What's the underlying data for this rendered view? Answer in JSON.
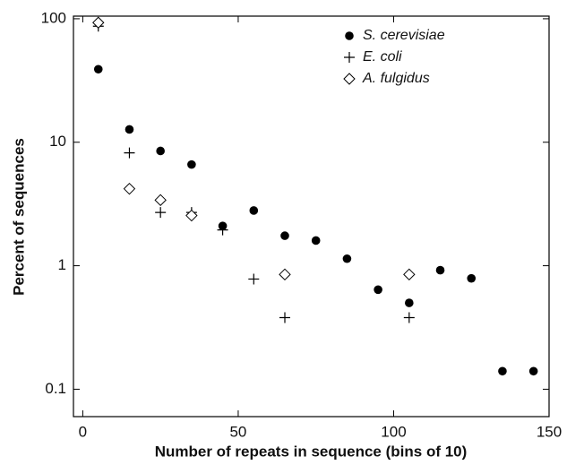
{
  "chart_data": {
    "type": "scatter",
    "xlabel": "Number of repeats in sequence (bins of 10)",
    "ylabel": "Percent of sequences",
    "xlim": [
      -3,
      150
    ],
    "xticks": [
      0,
      50,
      100,
      150
    ],
    "ylim": [
      0.06,
      105
    ],
    "yscale": "log",
    "yticks": [
      {
        "value": 0.1,
        "label": "0.1"
      },
      1,
      10,
      100
    ],
    "legend": "upper right",
    "series": [
      {
        "name": "S. cerevisiae",
        "color": "#000000",
        "marker": "circle",
        "x": [
          5,
          15,
          25,
          35,
          45,
          55,
          65,
          75,
          85,
          95,
          105,
          115,
          125,
          135,
          145
        ],
        "values": [
          39,
          12.7,
          8.5,
          6.6,
          2.1,
          2.8,
          1.75,
          1.6,
          1.14,
          0.64,
          0.5,
          0.92,
          0.79,
          0.14,
          0.14
        ]
      },
      {
        "name": "E. coli",
        "color": "#000000",
        "marker": "plus",
        "x": [
          5,
          15,
          25,
          35,
          45,
          55,
          65,
          105
        ],
        "values": [
          87,
          8.2,
          2.7,
          2.7,
          1.95,
          0.78,
          0.38,
          0.38
        ]
      },
      {
        "name": "A. fulgidus",
        "color": "#000000",
        "marker": "diamond",
        "x": [
          5,
          15,
          25,
          35,
          65,
          105
        ],
        "values": [
          93,
          4.2,
          3.4,
          2.55,
          0.85,
          0.85
        ]
      }
    ]
  }
}
